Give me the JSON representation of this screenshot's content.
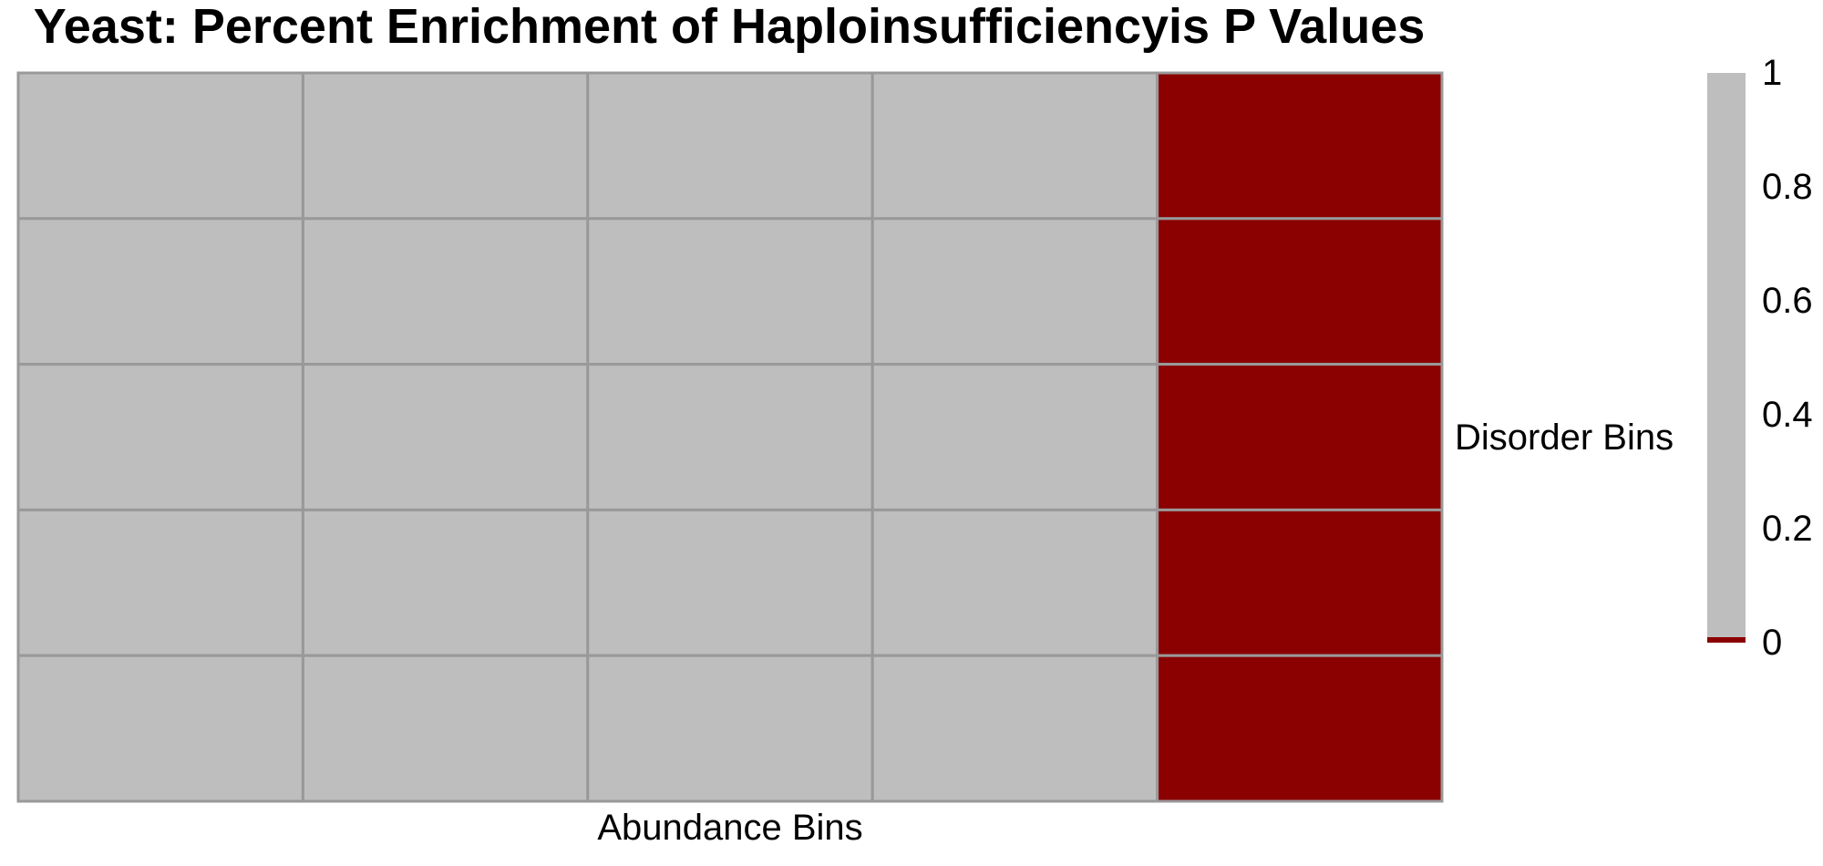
{
  "chart_data": {
    "type": "heatmap",
    "title": "Yeast: Percent Enrichment of Haploinsufficiencyis P Values",
    "xlabel": "Abundance Bins",
    "ylabel": "Disorder Bins",
    "n_cols": 5,
    "n_rows": 5,
    "values": [
      [
        1,
        1,
        1,
        1,
        0
      ],
      [
        1,
        1,
        1,
        1,
        0
      ],
      [
        1,
        1,
        1,
        1,
        0
      ],
      [
        1,
        1,
        1,
        1,
        0
      ],
      [
        1,
        1,
        1,
        1,
        0
      ]
    ],
    "colorbar": {
      "range": [
        0,
        1
      ],
      "ticks": [
        {
          "value": 1,
          "label": "1"
        },
        {
          "value": 0.8,
          "label": "0.8"
        },
        {
          "value": 0.6,
          "label": "0.6"
        },
        {
          "value": 0.4,
          "label": "0.4"
        },
        {
          "value": 0.2,
          "label": "0.2"
        },
        {
          "value": 0,
          "label": "0"
        }
      ],
      "low_color": "#8b0000",
      "high_color": "#bebebe"
    },
    "cell_border_color": "#999999",
    "grid": true,
    "legend_placement": "right"
  }
}
